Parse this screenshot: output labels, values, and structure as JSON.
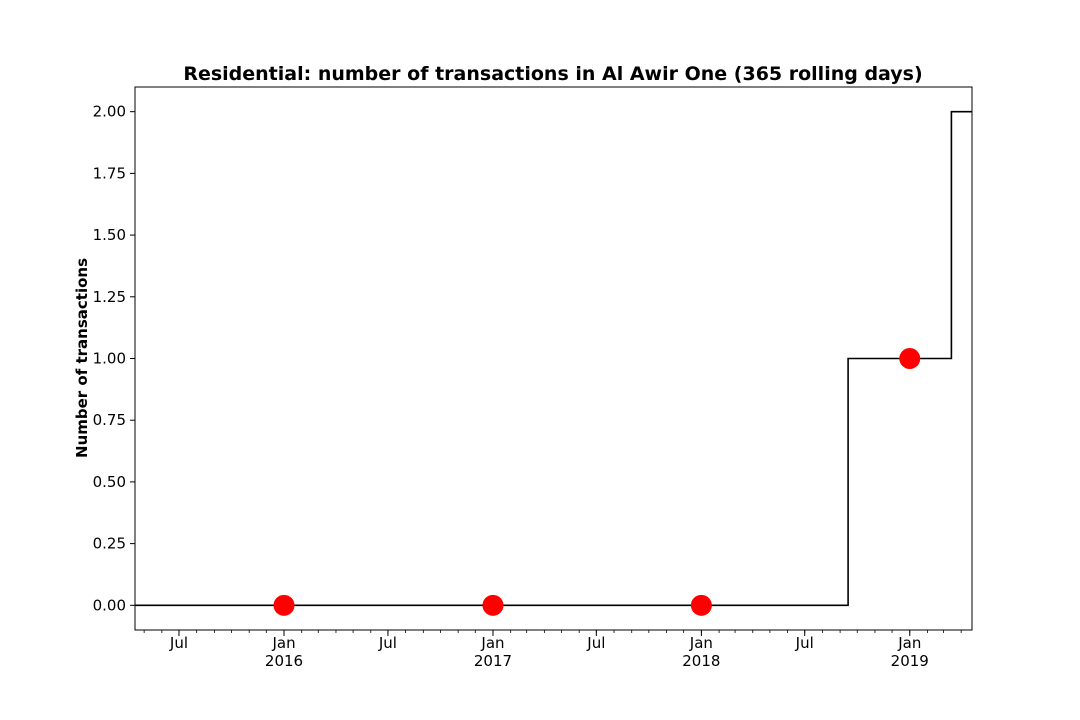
{
  "chart_data": {
    "type": "line",
    "title": "Residential: number of transactions in Al Awir One (365 rolling days)",
    "xlabel": "",
    "ylabel": "Number of transactions",
    "x_type": "date",
    "xlim": [
      "2015-04-15",
      "2019-04-20"
    ],
    "ylim": [
      -0.1,
      2.1
    ],
    "grid": false,
    "series": [
      {
        "style": "step",
        "color": "#000000",
        "x": [
          "2015-04-15",
          "2018-09-15",
          "2018-09-15",
          "2019-03-15",
          "2019-03-15",
          "2019-04-20"
        ],
        "y": [
          0,
          0,
          1,
          1,
          2,
          2
        ]
      },
      {
        "style": "markers",
        "color": "#ff0000",
        "x": [
          "2016-01-01",
          "2017-01-01",
          "2018-01-01",
          "2019-01-01"
        ],
        "y": [
          0,
          0,
          0,
          1
        ]
      }
    ],
    "y_ticks": [
      0.0,
      0.25,
      0.5,
      0.75,
      1.0,
      1.25,
      1.5,
      1.75,
      2.0
    ],
    "y_tick_labels": [
      "0.00",
      "0.25",
      "0.50",
      "0.75",
      "1.00",
      "1.25",
      "1.50",
      "1.75",
      "2.00"
    ],
    "x_ticks": [
      {
        "date": "2015-07-01",
        "label": "Jul",
        "sub": ""
      },
      {
        "date": "2016-01-01",
        "label": "Jan",
        "sub": "2016"
      },
      {
        "date": "2016-07-01",
        "label": "Jul",
        "sub": ""
      },
      {
        "date": "2017-01-01",
        "label": "Jan",
        "sub": "2017"
      },
      {
        "date": "2017-07-01",
        "label": "Jul",
        "sub": ""
      },
      {
        "date": "2018-01-01",
        "label": "Jan",
        "sub": "2018"
      },
      {
        "date": "2018-07-01",
        "label": "Jul",
        "sub": ""
      },
      {
        "date": "2019-01-01",
        "label": "Jan",
        "sub": "2019"
      }
    ]
  }
}
